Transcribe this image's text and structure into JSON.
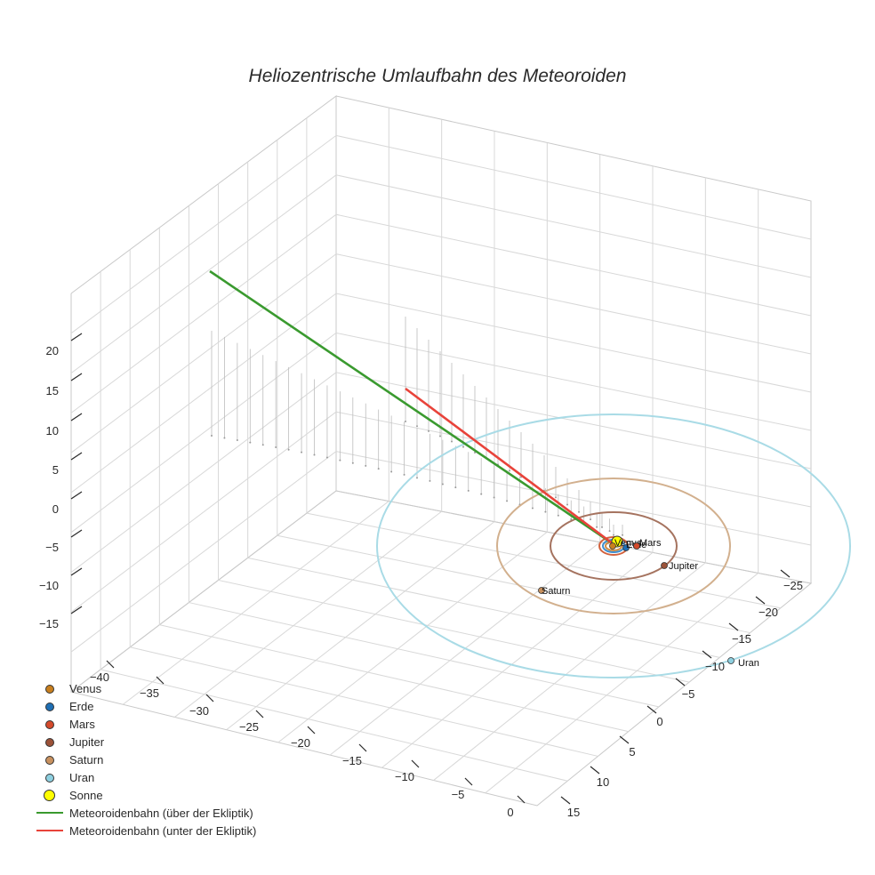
{
  "chart_data": {
    "type": "scatter3d",
    "title": "Heliozentrische Umlaufbahn des Meteoroiden",
    "axes": {
      "x_ticks": [
        "−40",
        "−35",
        "−30",
        "−25",
        "−20",
        "−15",
        "−10",
        "−5",
        "0"
      ],
      "y_ticks": [
        "−25",
        "−20",
        "−15",
        "−10",
        "−5",
        "0",
        "5",
        "10",
        "15"
      ],
      "z_ticks": [
        "20",
        "15",
        "10",
        "5",
        "0",
        "−5",
        "−10",
        "−15"
      ],
      "grid": true
    },
    "sun": {
      "name": "Sonne",
      "label": "Sonne",
      "color": "#ffff00",
      "position": [
        0,
        0,
        0
      ]
    },
    "planets": [
      {
        "name": "Venus",
        "label": "Venus",
        "color": "#c87f1e",
        "orbit_color": "#d08d45",
        "orbit_radius_au": 0.72
      },
      {
        "name": "Erde",
        "label": "Erde",
        "color": "#1f6fb4",
        "orbit_color": "#3f8fd0",
        "orbit_radius_au": 1.0
      },
      {
        "name": "Mars",
        "label": "Mars",
        "color": "#d44a2b",
        "orbit_color": "#d2623e",
        "orbit_radius_au": 1.52
      },
      {
        "name": "Jupiter",
        "label": "Jupiter",
        "color": "#9c5238",
        "orbit_color": "#a5735f",
        "orbit_radius_au": 5.2
      },
      {
        "name": "Saturn",
        "label": "Saturn",
        "color": "#c8915f",
        "orbit_color": "#d2b08e",
        "orbit_radius_au": 9.5
      },
      {
        "name": "Uran",
        "label": "Uran",
        "color": "#8ed0e0",
        "orbit_color": "#a9dbe6",
        "orbit_radius_au": 19.2
      }
    ],
    "series": [
      {
        "name": "Meteoroidenbahn (über der Ekliptik)",
        "color": "#3a9a2f"
      },
      {
        "name": "Meteoroidenbahn (unter der Ekliptik)",
        "color": "#e8433a"
      }
    ],
    "legend": "bottom-left"
  }
}
